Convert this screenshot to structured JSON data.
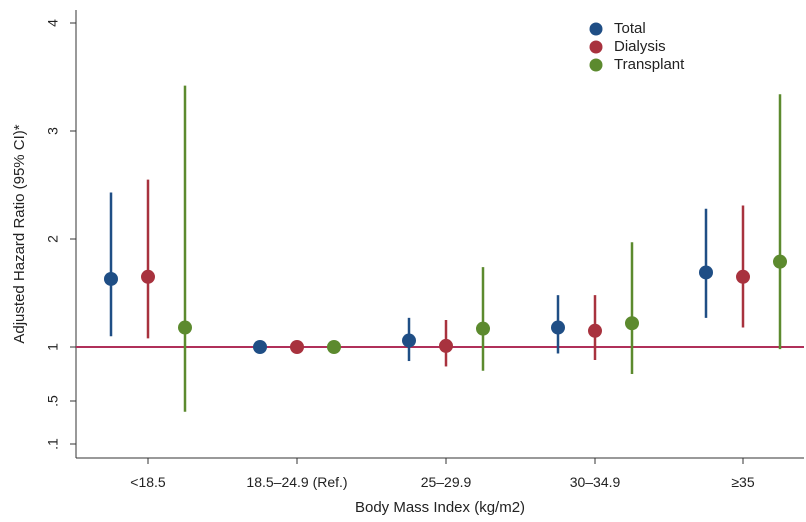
{
  "chart_data": {
    "type": "scatter",
    "subtype": "point-estimate with confidence interval",
    "xlabel": "Body Mass Index (kg/m2)",
    "ylabel": "Adjusted Hazard Ratio (95% CI)*",
    "categories": [
      "<18.5",
      "18.5–24.9 (Ref.)",
      "25–29.9",
      "30–34.9",
      "≥35"
    ],
    "y_ticks": [
      {
        "label": ".1",
        "value": 0.1
      },
      {
        "label": ".5",
        "value": 0.5
      },
      {
        "label": "1",
        "value": 1
      },
      {
        "label": "2",
        "value": 2
      },
      {
        "label": "3",
        "value": 3
      },
      {
        "label": "4",
        "value": 4
      }
    ],
    "ylim": [
      0,
      4.2
    ],
    "reference_line": {
      "y": 1,
      "color": "#b0305a"
    },
    "grid": false,
    "legend_position": "top-right",
    "series": [
      {
        "name": "Total",
        "color": "#1f4e85",
        "values": [
          1.63,
          1.0,
          1.06,
          1.18,
          1.69
        ],
        "ci_lower": [
          1.1,
          1.0,
          0.87,
          0.94,
          1.27
        ],
        "ci_upper": [
          2.43,
          1.0,
          1.27,
          1.48,
          2.28
        ]
      },
      {
        "name": "Dialysis",
        "color": "#a8323e",
        "values": [
          1.65,
          1.0,
          1.01,
          1.15,
          1.65
        ],
        "ci_lower": [
          1.08,
          1.0,
          0.82,
          0.88,
          1.18
        ],
        "ci_upper": [
          2.55,
          1.0,
          1.25,
          1.48,
          2.31
        ]
      },
      {
        "name": "Transplant",
        "color": "#5c8a2e",
        "values": [
          1.18,
          1.0,
          1.17,
          1.22,
          1.79
        ],
        "ci_lower": [
          0.4,
          1.0,
          0.78,
          0.75,
          0.98
        ],
        "ci_upper": [
          3.42,
          1.0,
          1.74,
          1.97,
          3.34
        ]
      }
    ]
  }
}
